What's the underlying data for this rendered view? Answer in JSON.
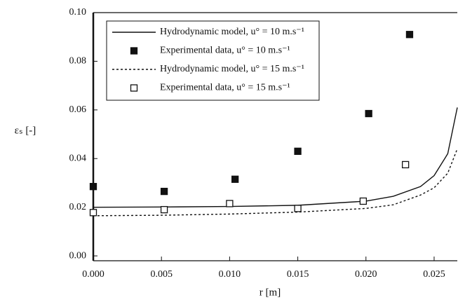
{
  "chart_data": {
    "type": "line",
    "xlabel": "r [m]",
    "ylabel": "εₛ [-]",
    "xlim": [
      0,
      0.0267
    ],
    "ylim": [
      -0.002,
      0.1
    ],
    "xticks": [
      {
        "value": 0,
        "label": "0.000"
      },
      {
        "value": 0.005,
        "label": "0.005"
      },
      {
        "value": 0.01,
        "label": "0.010"
      },
      {
        "value": 0.015,
        "label": "0.015"
      },
      {
        "value": 0.02,
        "label": "0.020"
      },
      {
        "value": 0.025,
        "label": "0.025"
      }
    ],
    "yticks": [
      {
        "value": 0,
        "label": "0.00"
      },
      {
        "value": 0.02,
        "label": "0.02"
      },
      {
        "value": 0.04,
        "label": "0.04"
      },
      {
        "value": 0.06,
        "label": "0.06"
      },
      {
        "value": 0.08,
        "label": "0.08"
      },
      {
        "value": 0.1,
        "label": "0.10"
      }
    ],
    "legend": "upper-left",
    "series": [
      {
        "name": "Hydrodynamic model, u° = 10 m.s⁻¹",
        "type": "line",
        "style": "solid",
        "color": "#111111",
        "x": [
          0,
          0.005,
          0.01,
          0.015,
          0.02,
          0.022,
          0.024,
          0.025,
          0.026,
          0.0267
        ],
        "values": [
          0.02,
          0.0201,
          0.0203,
          0.0208,
          0.0225,
          0.0245,
          0.0285,
          0.033,
          0.042,
          0.061
        ]
      },
      {
        "name": "Experimental data, u° = 10 m.s⁻¹",
        "type": "scatter",
        "marker": "filled-square",
        "color": "#111111",
        "x": [
          0,
          0.0052,
          0.0104,
          0.015,
          0.0202,
          0.0232
        ],
        "values": [
          0.0285,
          0.0265,
          0.0315,
          0.043,
          0.0585,
          0.091
        ]
      },
      {
        "name": "Hydrodynamic model, u° = 15 m.s⁻¹",
        "type": "line",
        "style": "dotted",
        "color": "#111111",
        "x": [
          0,
          0.005,
          0.01,
          0.015,
          0.02,
          0.022,
          0.024,
          0.025,
          0.026,
          0.0267
        ],
        "values": [
          0.0165,
          0.0167,
          0.0172,
          0.018,
          0.0195,
          0.021,
          0.025,
          0.028,
          0.034,
          0.044
        ]
      },
      {
        "name": "Experimental data, u° = 15 m.s⁻¹",
        "type": "scatter",
        "marker": "open-square",
        "color": "#111111",
        "x": [
          0,
          0.0052,
          0.01,
          0.015,
          0.0198,
          0.0229
        ],
        "values": [
          0.0178,
          0.019,
          0.0215,
          0.0195,
          0.0225,
          0.0375
        ]
      }
    ]
  }
}
